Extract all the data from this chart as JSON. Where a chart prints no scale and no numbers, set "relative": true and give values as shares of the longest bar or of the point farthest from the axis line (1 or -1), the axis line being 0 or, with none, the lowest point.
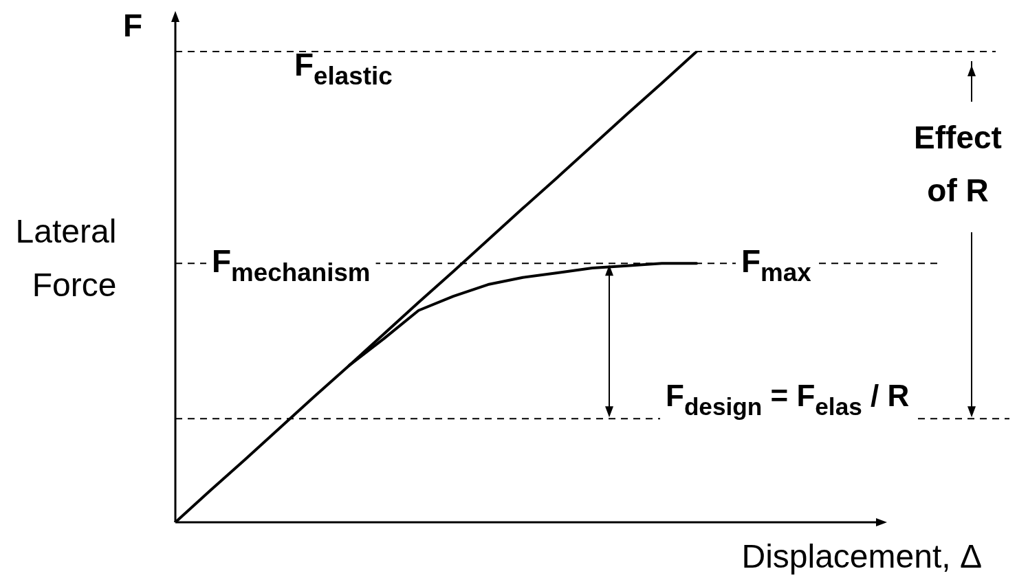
{
  "chart_data": {
    "type": "line",
    "relative": true,
    "xlabel": "Displacement, Δ",
    "ylabel": "Lateral Force",
    "categories": [
      null,
      null,
      null,
      null,
      null,
      null,
      null,
      null,
      null,
      null,
      null,
      null,
      null,
      null,
      null,
      null
    ],
    "series": [
      {
        "color": "#000000",
        "values": [
          0,
          0.067,
          0.133,
          0.2,
          0.267,
          0.333,
          0.4,
          0.467,
          0.533,
          0.6,
          0.667,
          0.733,
          0.8,
          0.867,
          0.933,
          1
        ]
      },
      {
        "color": "#000000",
        "values": [
          null,
          null,
          null,
          null,
          null,
          0.333,
          0.39,
          0.45,
          0.48,
          0.505,
          0.52,
          0.53,
          0.54,
          0.545,
          0.55,
          0.55
        ]
      }
    ],
    "ref_lines": [
      {
        "axis": "y",
        "value": 1,
        "label": "F$_{elastic}$",
        "line_style": "dashed",
        "color": "#000000"
      },
      {
        "axis": "y",
        "value": 0.55,
        "label": "F$_{mechanism}$",
        "line_style": "dashed",
        "color": "#000000"
      },
      {
        "axis": "y",
        "value": 0.22,
        "label": null,
        "line_style": "dashed",
        "color": "#000000"
      }
    ],
    "annotations": [
      "F",
      "F$_{max}$",
      "F$_{design}$ = F$_{elas}$ / R",
      "Effect of R"
    ],
    "grid": false,
    "legend": false,
    "marker": "none",
    "line_style": "solid"
  }
}
